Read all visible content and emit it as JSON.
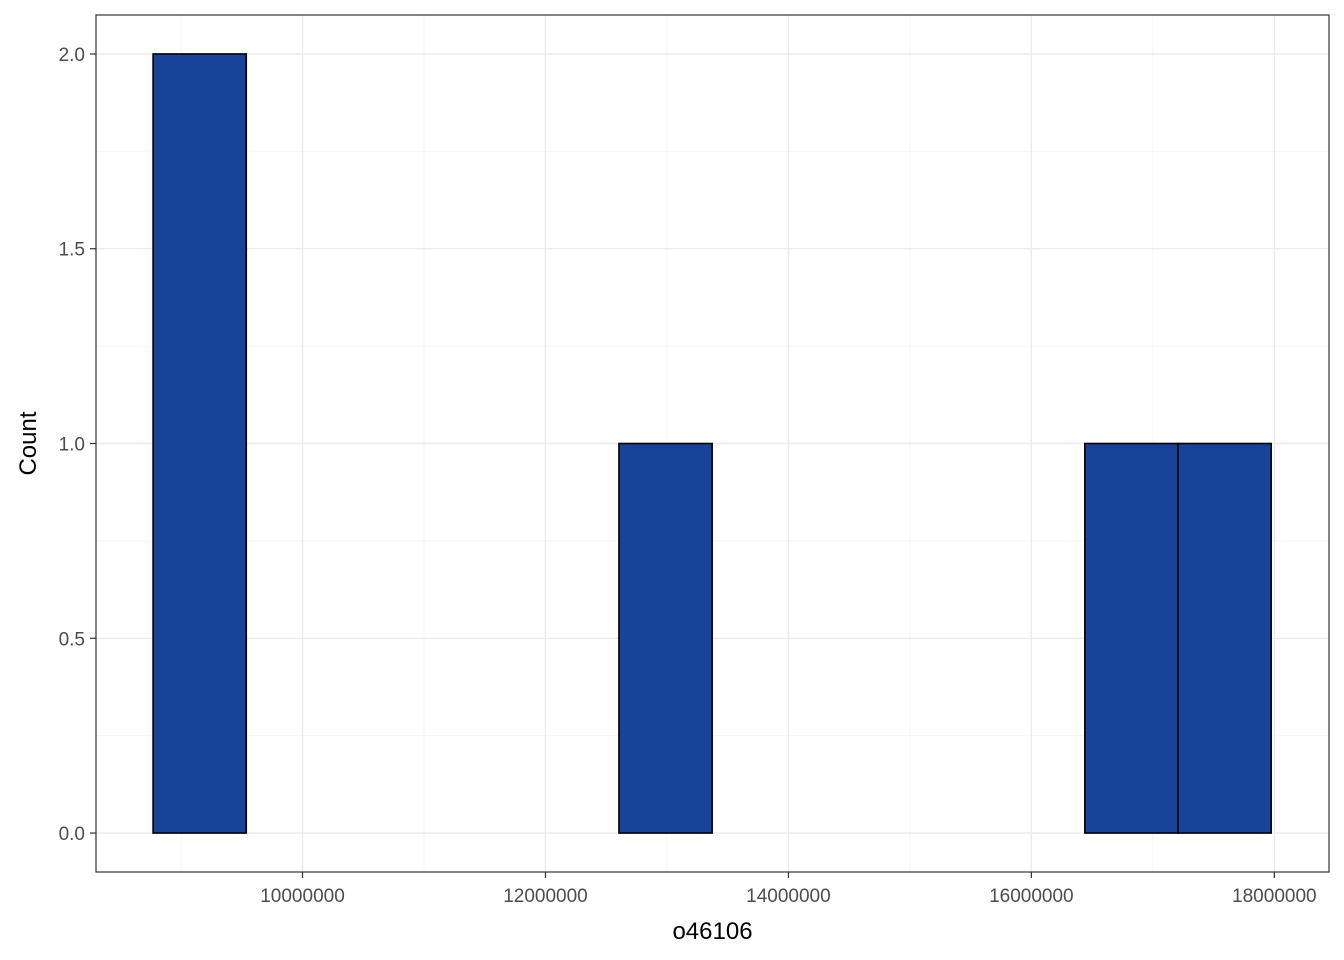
{
  "chart_data": {
    "type": "bar",
    "title": "",
    "xlabel": "o46106",
    "ylabel": "Count",
    "xlim": [
      8300000,
      18450000
    ],
    "ylim": [
      -0.1,
      2.1
    ],
    "x_ticks": [
      10000000,
      12000000,
      14000000,
      16000000,
      18000000
    ],
    "x_tick_labels": [
      "10000000",
      "12000000",
      "14000000",
      "16000000",
      "18000000"
    ],
    "y_ticks": [
      0.0,
      0.5,
      1.0,
      1.5,
      2.0
    ],
    "y_tick_labels": [
      "0.0",
      "0.5",
      "1.0",
      "1.5",
      "2.0"
    ],
    "bin_width": 767000,
    "bin_start": 8770000,
    "counts": [
      2,
      0,
      0,
      0,
      0,
      1,
      0,
      0,
      0,
      0,
      1,
      1
    ],
    "grid": true,
    "legend": "none",
    "colors": {
      "fill": "#17439a",
      "stroke": "#000000",
      "grid_major": "#ebebeb",
      "grid_minor": "#f5f5f5",
      "panel_border": "#333333"
    }
  }
}
